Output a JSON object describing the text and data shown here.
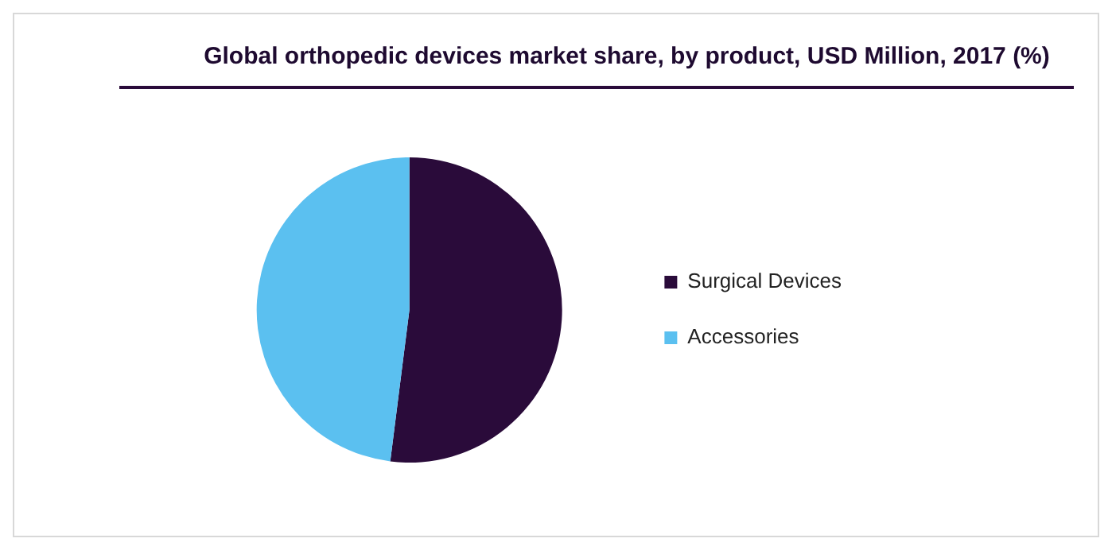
{
  "chart_data": {
    "type": "pie",
    "title": "Global orthopedic devices market share, by product, USD Million, 2017 (%)",
    "categories": [
      "Surgical Devices",
      "Accessories"
    ],
    "values": [
      52,
      48
    ],
    "colors": [
      "#2a0b3a",
      "#5bc0f0"
    ],
    "legend": "right"
  }
}
